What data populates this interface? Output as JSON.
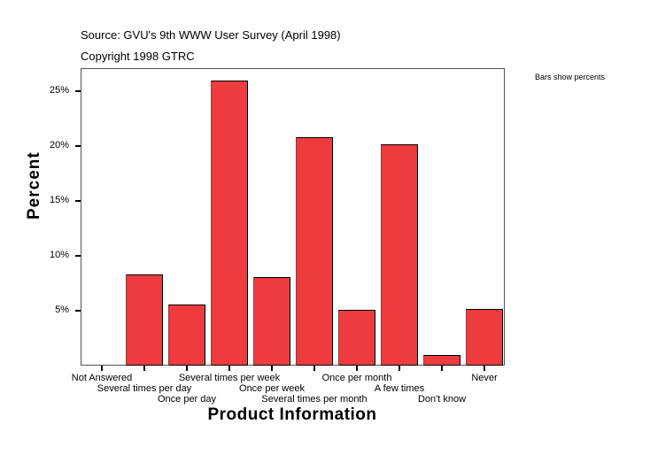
{
  "header": {
    "source": "Source: GVU's 9th WWW User Survey (April 1998)",
    "copyright": "Copyright 1998 GTRC",
    "note": "Bars show percents"
  },
  "chart_data": {
    "type": "bar",
    "title": "",
    "xlabel": "Product Information",
    "ylabel": "Percent",
    "ylim": [
      0,
      27
    ],
    "yticks": [
      "5%",
      "10%",
      "15%",
      "20%",
      "25%"
    ],
    "categories": [
      "Not Answered",
      "Several times per day",
      "Once per day",
      "Several times per week",
      "Once per week",
      "Several times per month",
      "Once per month",
      "A few times",
      "Don't know",
      "Never"
    ],
    "values": [
      0,
      8.3,
      5.6,
      26.0,
      8.1,
      20.8,
      5.1,
      20.2,
      1.0,
      5.2
    ],
    "legend_note": "Bars show percents",
    "bar_color": "#EE3B3D",
    "grid": false
  }
}
